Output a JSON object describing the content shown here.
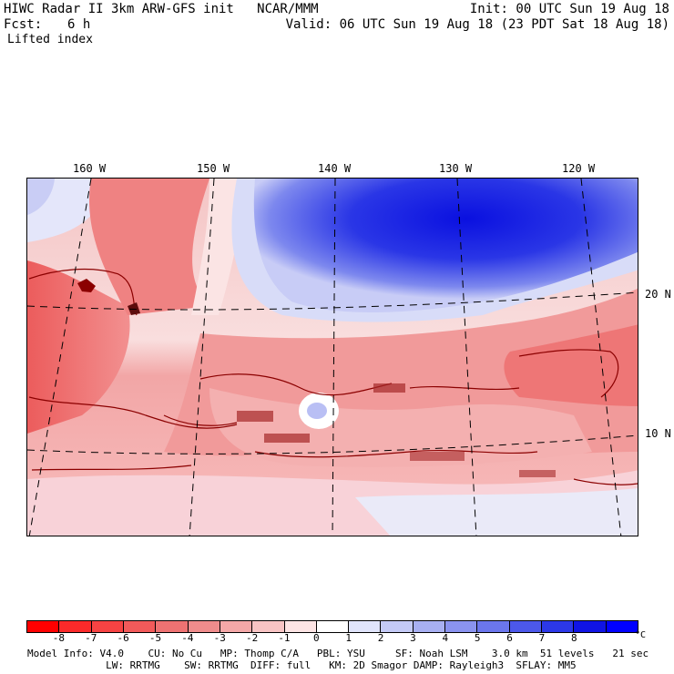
{
  "header": {
    "title": "HIWC Radar II 3km ARW-GFS init   NCAR/MMM",
    "init": "Init: 00 UTC Sun 19 Aug 18",
    "fcst_label": "Fcst:",
    "fcst_value": "6 h",
    "valid": "Valid: 06 UTC Sun 19 Aug 18 (23 PDT Sat 18 Aug 18)",
    "field": "Lifted index"
  },
  "map": {
    "lon_labels": [
      "160 W",
      "150 W",
      "140 W",
      "130 W",
      "120 W"
    ],
    "lat_labels": [
      "20 N",
      "10 N"
    ]
  },
  "legend": {
    "ticks": [
      "-8",
      "-7",
      "-6",
      "-5",
      "-4",
      "-3",
      "-2",
      "-1",
      "0",
      "1",
      "2",
      "3",
      "4",
      "5",
      "6",
      "7",
      "8"
    ],
    "unit": "°C",
    "colors": [
      "#ff0000",
      "#fb2a2a",
      "#f64343",
      "#f25a5a",
      "#ee7272",
      "#ef8c8c",
      "#f4a8a8",
      "#f8c4c4",
      "#fde4e4",
      "#ffffff",
      "#e0e4fb",
      "#c4caf6",
      "#a8b0f2",
      "#8a93ef",
      "#6b76ec",
      "#4c58ea",
      "#2c38e8",
      "#1014e4",
      "#0000ff"
    ]
  },
  "footer": {
    "line1": "Model Info: V4.0    CU: No Cu   MP: Thomp C/A   PBL: YSU     SF: Noah LSM    3.0 km  51 levels   21 sec",
    "line2": "             LW: RRTMG    SW: RRTMG  DIFF: full   KM: 2D Smagor DAMP: Rayleigh3  SFLAY: MM5"
  }
}
